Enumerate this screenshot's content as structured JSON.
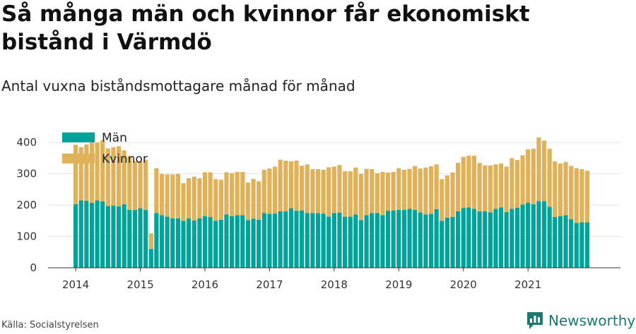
{
  "title": "Så många män och kvinnor får ekonomiskt bistånd i Värmdö",
  "subtitle": "Antal vuxna biståndsmottagare månad för månad",
  "source": "Källa: Socialstyrelsen",
  "brand": "Newsworthy",
  "colors": {
    "men": "#00a39a",
    "women": "#dfb25a",
    "grid": "#e3e3e3",
    "axis": "#333333",
    "brand": "#1a7a73"
  },
  "chart_data": {
    "type": "bar",
    "stacked": true,
    "x_ticks": [
      "2014",
      "2015",
      "2016",
      "2017",
      "2018",
      "2019",
      "2020",
      "2021"
    ],
    "y_ticks": [
      0,
      100,
      200,
      300,
      400
    ],
    "ylim": [
      0,
      450
    ],
    "legend": {
      "placement": "top-left",
      "entries": [
        "Män",
        "Kvinnor"
      ]
    },
    "series": [
      {
        "name": "Män",
        "values": [
          203,
          215,
          214,
          207,
          215,
          212,
          197,
          198,
          196,
          203,
          185,
          185,
          190,
          185,
          60,
          175,
          168,
          163,
          158,
          158,
          150,
          158,
          151,
          158,
          165,
          162,
          150,
          153,
          170,
          165,
          168,
          168,
          152,
          157,
          153,
          175,
          172,
          173,
          180,
          180,
          190,
          182,
          183,
          175,
          175,
          175,
          173,
          163,
          175,
          176,
          163,
          163,
          170,
          152,
          168,
          175,
          175,
          168,
          182,
          183,
          185,
          185,
          188,
          185,
          177,
          170,
          172,
          187,
          150,
          160,
          162,
          180,
          191,
          193,
          188,
          180,
          180,
          177,
          188,
          193,
          178,
          188,
          192,
          202,
          208,
          203,
          213,
          213,
          195,
          162,
          165,
          168,
          155,
          143,
          145,
          145
        ]
      },
      {
        "name": "Kvinnor",
        "values": [
          190,
          170,
          180,
          193,
          185,
          195,
          184,
          187,
          192,
          172,
          170,
          155,
          150,
          160,
          50,
          143,
          132,
          135,
          140,
          142,
          120,
          128,
          140,
          128,
          140,
          143,
          133,
          128,
          135,
          137,
          138,
          138,
          120,
          127,
          123,
          138,
          145,
          150,
          165,
          162,
          150,
          160,
          143,
          155,
          140,
          140,
          140,
          158,
          148,
          152,
          145,
          145,
          150,
          148,
          148,
          140,
          127,
          138,
          122,
          123,
          133,
          128,
          128,
          140,
          140,
          150,
          152,
          143,
          133,
          135,
          142,
          155,
          163,
          165,
          170,
          155,
          147,
          150,
          142,
          140,
          145,
          162,
          152,
          157,
          170,
          177,
          203,
          193,
          185,
          178,
          168,
          170,
          170,
          175,
          170,
          165
        ]
      }
    ]
  }
}
